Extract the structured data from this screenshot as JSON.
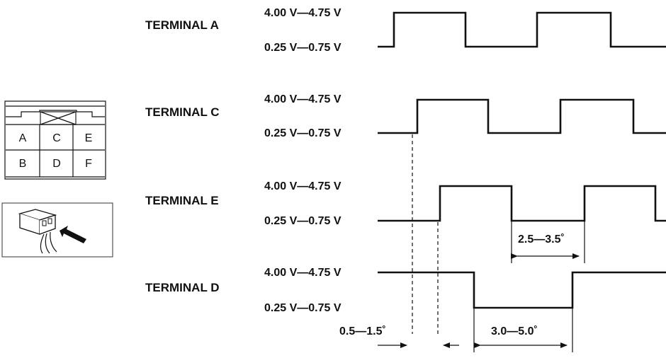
{
  "connector": {
    "pins_top": [
      "A",
      "C",
      "E"
    ],
    "pins_bottom": [
      "B",
      "D",
      "F"
    ]
  },
  "terminals": [
    {
      "label": "TERMINAL A",
      "high": "4.00 V—4.75 V",
      "low": "0.25 V—0.75 V"
    },
    {
      "label": "TERMINAL C",
      "high": "4.00 V—4.75 V",
      "low": "0.25 V—0.75 V"
    },
    {
      "label": "TERMINAL E",
      "high": "4.00 V—4.75 V",
      "low": "0.25 V—0.75 V"
    },
    {
      "label": "TERMINAL D",
      "high": "4.00 V—4.75 V",
      "low": "0.25 V—0.75 V"
    }
  ],
  "dimensions": {
    "e_low_width": "2.5—3.5˚",
    "offset": "0.5—1.5˚",
    "d_low_width": "3.0—5.0˚"
  }
}
